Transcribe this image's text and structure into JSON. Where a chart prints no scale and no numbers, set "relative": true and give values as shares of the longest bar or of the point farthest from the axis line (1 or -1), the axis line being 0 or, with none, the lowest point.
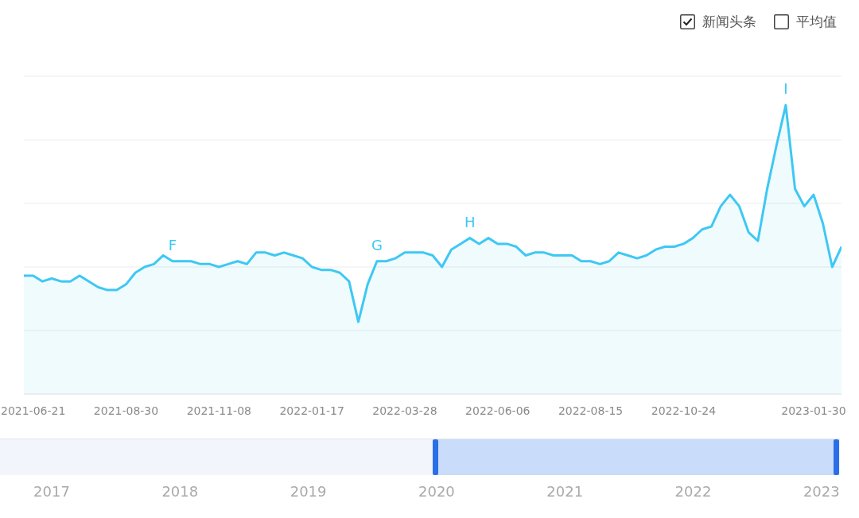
{
  "chart_data": {
    "type": "area",
    "relative": true,
    "color": "#3ec8f4",
    "grid": "y",
    "x": [
      "2021-06-14",
      "2021-06-21",
      "2021-06-28",
      "2021-07-05",
      "2021-07-12",
      "2021-07-19",
      "2021-07-26",
      "2021-08-02",
      "2021-08-09",
      "2021-08-16",
      "2021-08-23",
      "2021-08-30",
      "2021-09-06",
      "2021-09-13",
      "2021-09-20",
      "2021-09-27",
      "2021-10-04",
      "2021-10-11",
      "2021-10-18",
      "2021-10-25",
      "2021-11-01",
      "2021-11-08",
      "2021-11-15",
      "2021-11-22",
      "2021-11-29",
      "2021-12-06",
      "2021-12-13",
      "2021-12-20",
      "2021-12-27",
      "2022-01-03",
      "2022-01-10",
      "2022-01-17",
      "2022-01-24",
      "2022-01-31",
      "2022-02-07",
      "2022-02-14",
      "2022-02-21",
      "2022-02-28",
      "2022-03-07",
      "2022-03-14",
      "2022-03-21",
      "2022-03-28",
      "2022-04-04",
      "2022-04-11",
      "2022-04-18",
      "2022-04-25",
      "2022-05-02",
      "2022-05-09",
      "2022-05-16",
      "2022-05-23",
      "2022-05-30",
      "2022-06-06",
      "2022-06-13",
      "2022-06-20",
      "2022-06-27",
      "2022-07-04",
      "2022-07-11",
      "2022-07-18",
      "2022-07-25",
      "2022-08-01",
      "2022-08-08",
      "2022-08-15",
      "2022-08-22",
      "2022-08-29",
      "2022-09-05",
      "2022-09-12",
      "2022-09-19",
      "2022-09-26",
      "2022-10-03",
      "2022-10-10",
      "2022-10-17",
      "2022-10-24",
      "2022-10-31",
      "2022-11-07",
      "2022-11-14",
      "2022-11-21",
      "2022-11-28",
      "2022-12-05",
      "2022-12-12",
      "2022-12-19",
      "2022-12-26",
      "2023-01-02",
      "2023-01-09",
      "2023-01-16",
      "2023-01-23",
      "2023-01-30",
      "2023-02-06",
      "2023-02-13",
      "2023-02-20"
    ],
    "values": [
      0.41,
      0.41,
      0.39,
      0.4,
      0.39,
      0.39,
      0.41,
      0.39,
      0.37,
      0.36,
      0.36,
      0.38,
      0.42,
      0.44,
      0.45,
      0.48,
      0.46,
      0.46,
      0.46,
      0.45,
      0.45,
      0.44,
      0.45,
      0.46,
      0.45,
      0.49,
      0.49,
      0.48,
      0.49,
      0.48,
      0.47,
      0.44,
      0.43,
      0.43,
      0.42,
      0.39,
      0.25,
      0.38,
      0.46,
      0.46,
      0.47,
      0.49,
      0.49,
      0.49,
      0.48,
      0.44,
      0.5,
      0.52,
      0.54,
      0.52,
      0.54,
      0.52,
      0.52,
      0.51,
      0.48,
      0.49,
      0.49,
      0.48,
      0.48,
      0.48,
      0.46,
      0.46,
      0.45,
      0.46,
      0.49,
      0.48,
      0.47,
      0.48,
      0.5,
      0.51,
      0.51,
      0.52,
      0.54,
      0.57,
      0.58,
      0.65,
      0.69,
      0.65,
      0.56,
      0.53,
      0.71,
      0.86,
      1,
      0.71,
      0.65,
      0.69,
      0.59,
      0.44,
      0.51
    ],
    "xlim": [
      "2021-06-14",
      "2023-02-20"
    ],
    "xticks": [
      "2021-06-21",
      "2021-08-30",
      "2021-11-08",
      "2022-01-17",
      "2022-03-28",
      "2022-06-06",
      "2022-08-15",
      "2022-10-24",
      "2023-01-30"
    ],
    "annotations": [
      "新闻头条",
      "平均值",
      {
        "text": "F",
        "x": "2021-10-04",
        "y": 0.46
      },
      {
        "text": "G",
        "x": "2022-03-07",
        "y": 0.46
      },
      {
        "text": "H",
        "x": "2022-05-16",
        "y": 0.54
      },
      {
        "text": "I",
        "x": "2023-01-09",
        "y": 1
      },
      "2017",
      "2018",
      "2019",
      "2020",
      "2021",
      "2022",
      "2023"
    ]
  }
}
